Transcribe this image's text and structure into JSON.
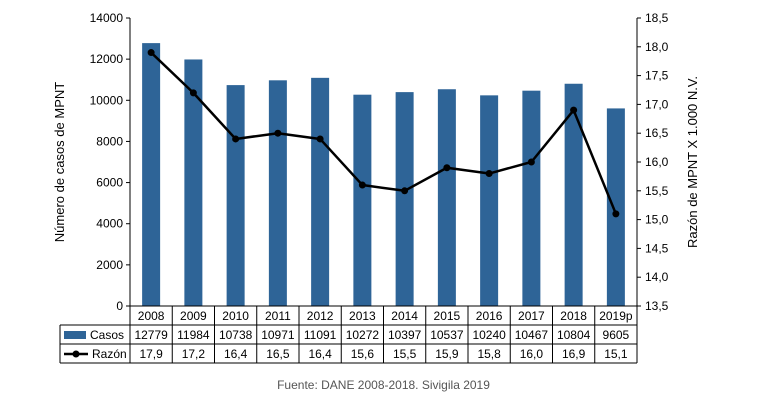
{
  "chart_data": {
    "type": "bar",
    "categories": [
      "2008",
      "2009",
      "2010",
      "2011",
      "2012",
      "2013",
      "2014",
      "2015",
      "2016",
      "2017",
      "2018",
      "2019p"
    ],
    "series": [
      {
        "name": "Casos",
        "type": "bar",
        "axis": "left",
        "color": "#2E6497",
        "values": [
          12779,
          11984,
          10738,
          10971,
          11091,
          10272,
          10397,
          10537,
          10240,
          10467,
          10804,
          9605
        ],
        "labels": [
          "12779",
          "11984",
          "10738",
          "10971",
          "11091",
          "10272",
          "10397",
          "10537",
          "10240",
          "10467",
          "10804",
          "9605"
        ]
      },
      {
        "name": "Razón",
        "type": "line",
        "axis": "right",
        "color": "#000000",
        "values": [
          17.9,
          17.2,
          16.4,
          16.5,
          16.4,
          15.6,
          15.5,
          15.9,
          15.8,
          16.0,
          16.9,
          15.1
        ],
        "labels": [
          "17,9",
          "17,2",
          "16,4",
          "16,5",
          "16,4",
          "15,6",
          "15,5",
          "15,9",
          "15,8",
          "16,0",
          "16,9",
          "15,1"
        ]
      }
    ],
    "ylabel": "Número de casos de MPNT",
    "y2label": "Razón de MPNT X 1.000 N.V.",
    "ylim": [
      0,
      14000
    ],
    "y2lim": [
      13.5,
      18.5
    ],
    "yticks": [
      "0",
      "2000",
      "4000",
      "6000",
      "8000",
      "10000",
      "12000",
      "14000"
    ],
    "y2ticks": [
      "13,5",
      "14,0",
      "14,5",
      "15,0",
      "15,5",
      "16,0",
      "16,5",
      "17,0",
      "17,5",
      "18,0",
      "18,5"
    ],
    "grid": false,
    "legend": "data-table"
  },
  "source": "Fuente: DANE 2008-2018. Sivigila 2019"
}
